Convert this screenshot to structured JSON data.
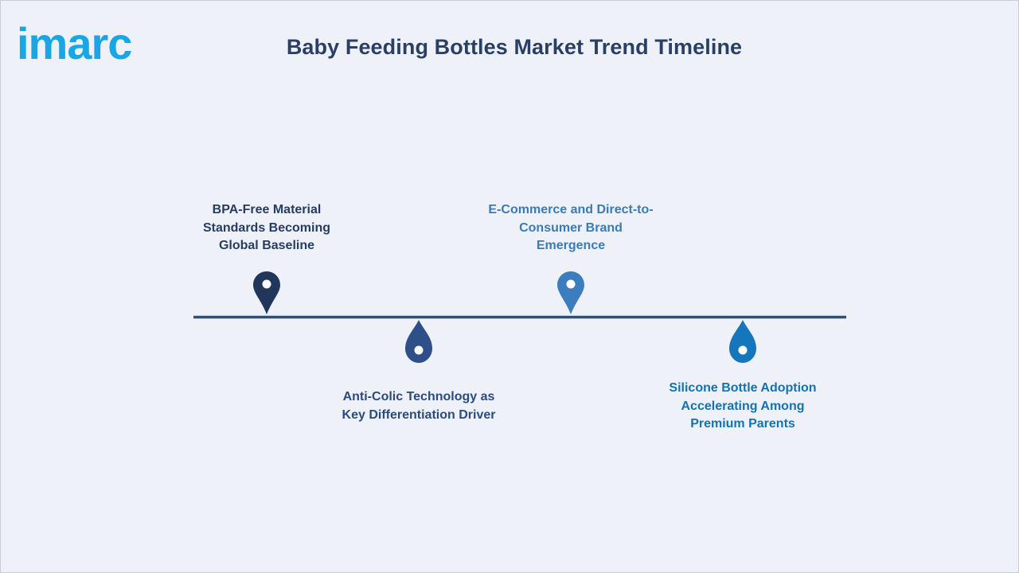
{
  "brand": {
    "logo_text": "imarc",
    "logo_color": "#1aa5e5"
  },
  "header": {
    "title": "Baby Feeding Bottles Market Trend Timeline"
  },
  "timeline": {
    "line_color": "#2c4f7c",
    "events": [
      {
        "lines": [
          "BPA-Free Material",
          "Standards Becoming",
          "Global Baseline"
        ],
        "marker": "map-pin-icon",
        "color": "#22365c",
        "side": "above"
      },
      {
        "lines": [
          "Anti-Colic Technology as",
          "Key Differentiation Driver"
        ],
        "marker": "droplet-icon",
        "color": "#2f4f88",
        "side": "below"
      },
      {
        "lines": [
          "E-Commerce and Direct-to-",
          "Consumer Brand",
          "Emergence"
        ],
        "marker": "map-pin-icon",
        "color": "#3b7dbf",
        "side": "above"
      },
      {
        "lines": [
          "Silicone Bottle Adoption",
          "Accelerating Among",
          "Premium Parents"
        ],
        "marker": "droplet-icon",
        "color": "#1576bb",
        "side": "below"
      }
    ]
  }
}
